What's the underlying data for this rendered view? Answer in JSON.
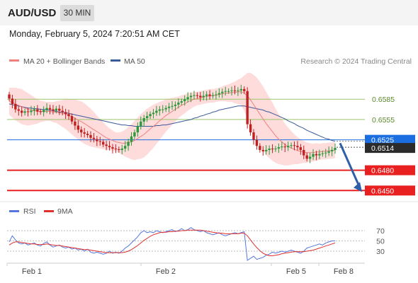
{
  "header": {
    "symbol": "AUD/USD",
    "timeframe": "30 MIN",
    "datetime": "Monday, February 5, 2024 7:20:51 AM CET"
  },
  "legend": {
    "bollinger_label": "MA 20 + Bollinger Bands",
    "ma50_label": "MA 50",
    "copyright": "Research © 2024 Trading Central",
    "rsi_label": "RSI",
    "rsi_ma_label": "9MA"
  },
  "colors": {
    "bollinger": "#f08080",
    "band_fill": "#ffd6d6",
    "ma50": "#3a5a9a",
    "rsi": "#5577dd",
    "rsi_ma": "#e03030",
    "resistance": "#9cc46b",
    "support": "#e82020",
    "current": "#1a6ee0",
    "last_price": "#2b2b2b",
    "arrow": "#2f5fa8"
  },
  "chart_data": {
    "type": "candlestick",
    "price_range": [
      0.6443,
      0.6625
    ],
    "x_labels": [
      "Feb 1",
      "Feb 2",
      "Feb 5",
      "Feb 8"
    ],
    "levels": [
      {
        "value": 0.6585,
        "label": "0.6585",
        "kind": "resistance"
      },
      {
        "value": 0.6555,
        "label": "0.6555",
        "kind": "resistance"
      },
      {
        "value": 0.6525,
        "label": "0.6525",
        "kind": "current"
      },
      {
        "value": 0.6514,
        "label": "0.6514",
        "kind": "last"
      },
      {
        "value": 0.648,
        "label": "0.6480",
        "kind": "support"
      },
      {
        "value": 0.645,
        "label": "0.6450",
        "kind": "support"
      }
    ],
    "forecast_arrow": {
      "from": 0.652,
      "to": 0.645,
      "direction": "down"
    },
    "close_series": [
      0.6586,
      0.6578,
      0.657,
      0.6568,
      0.6565,
      0.6567,
      0.6566,
      0.6568,
      0.657,
      0.6567,
      0.6566,
      0.6569,
      0.6572,
      0.657,
      0.6568,
      0.6571,
      0.6568,
      0.6566,
      0.6563,
      0.656,
      0.6552,
      0.6546,
      0.654,
      0.6536,
      0.6534,
      0.6532,
      0.6528,
      0.6526,
      0.6523,
      0.6522,
      0.6518,
      0.6516,
      0.6514,
      0.6512,
      0.6511,
      0.651,
      0.6512,
      0.6516,
      0.6522,
      0.653,
      0.6536,
      0.6545,
      0.6552,
      0.6557,
      0.656,
      0.6563,
      0.6565,
      0.6568,
      0.657,
      0.657,
      0.6572,
      0.6574,
      0.6575,
      0.6577,
      0.658,
      0.6582,
      0.6585,
      0.6588,
      0.659,
      0.6591,
      0.659,
      0.6588,
      0.659,
      0.6592,
      0.659,
      0.6591,
      0.6592,
      0.6594,
      0.6596,
      0.6597,
      0.6597,
      0.6598,
      0.6597,
      0.6598,
      0.66,
      0.6597,
      0.6548,
      0.6536,
      0.6525,
      0.6516,
      0.651,
      0.6508,
      0.651,
      0.6512,
      0.6511,
      0.6512,
      0.6514,
      0.6515,
      0.6514,
      0.6516,
      0.6517,
      0.6516,
      0.6514,
      0.651,
      0.6502,
      0.6497,
      0.65,
      0.6504,
      0.6502,
      0.6504,
      0.6505,
      0.6506,
      0.6508,
      0.651,
      0.6513
    ],
    "ma20_series": [
      0.6582,
      0.658,
      0.6578,
      0.6576,
      0.6574,
      0.6572,
      0.657,
      0.6569,
      0.6568,
      0.6567,
      0.6567,
      0.6567,
      0.6567,
      0.6567,
      0.6566,
      0.6566,
      0.6565,
      0.6564,
      0.6563,
      0.6561,
      0.6559,
      0.6557,
      0.6554,
      0.6552,
      0.6549,
      0.6546,
      0.6543,
      0.654,
      0.6537,
      0.6534,
      0.6531,
      0.6528,
      0.6526,
      0.6524,
      0.6522,
      0.6521,
      0.652,
      0.652,
      0.6521,
      0.6522,
      0.6524,
      0.6527,
      0.653,
      0.6533,
      0.6537,
      0.6541,
      0.6545,
      0.6549,
      0.6553,
      0.6557,
      0.6561,
      0.6564,
      0.6567,
      0.657,
      0.6573,
      0.6576,
      0.6578,
      0.6581,
      0.6583,
      0.6585,
      0.6586,
      0.6587,
      0.6588,
      0.6589,
      0.659,
      0.659,
      0.6591,
      0.6592,
      0.6593,
      0.6594,
      0.6594,
      0.6595,
      0.6595,
      0.6596,
      0.6596,
      0.6594,
      0.659,
      0.6584,
      0.6577,
      0.657,
      0.6563,
      0.6556,
      0.6549,
      0.6543,
      0.6537,
      0.6531,
      0.6526,
      0.6522,
      0.6518,
      0.6515,
      0.6513,
      0.6511,
      0.6509,
      0.6508,
      0.6507,
      0.6506,
      0.6506,
      0.6506,
      0.6507,
      0.6507,
      0.6508,
      0.6508,
      0.6509,
      0.6509,
      0.651
    ],
    "band_width_series": [
      0.002,
      0.0022,
      0.0024,
      0.0025,
      0.0026,
      0.0025,
      0.0024,
      0.0022,
      0.002,
      0.0018,
      0.0016,
      0.0015,
      0.0014,
      0.0014,
      0.0015,
      0.0016,
      0.0018,
      0.002,
      0.0022,
      0.0024,
      0.0026,
      0.0028,
      0.0029,
      0.003,
      0.003,
      0.0029,
      0.0028,
      0.0026,
      0.0024,
      0.0022,
      0.002,
      0.0018,
      0.0016,
      0.0015,
      0.0014,
      0.0015,
      0.0017,
      0.002,
      0.0023,
      0.0026,
      0.0029,
      0.0031,
      0.0033,
      0.0034,
      0.0034,
      0.0033,
      0.0032,
      0.003,
      0.0028,
      0.0026,
      0.0024,
      0.0022,
      0.002,
      0.0018,
      0.0016,
      0.0015,
      0.0014,
      0.0013,
      0.0012,
      0.0011,
      0.001,
      0.001,
      0.001,
      0.001,
      0.001,
      0.001,
      0.001,
      0.001,
      0.0011,
      0.0012,
      0.0013,
      0.0014,
      0.0016,
      0.0018,
      0.002,
      0.0026,
      0.0034,
      0.004,
      0.0044,
      0.0047,
      0.0048,
      0.0048,
      0.0047,
      0.0045,
      0.0043,
      0.004,
      0.0037,
      0.0034,
      0.0031,
      0.0028,
      0.0025,
      0.0022,
      0.002,
      0.0018,
      0.0016,
      0.0015,
      0.0014,
      0.0013,
      0.0013,
      0.0012,
      0.0012,
      0.0012,
      0.0012,
      0.0012,
      0.0012
    ],
    "ma50_series": [
      0.6578,
      0.6577,
      0.6576,
      0.6575,
      0.6574,
      0.6573,
      0.6572,
      0.6572,
      0.6571,
      0.6571,
      0.657,
      0.657,
      0.6569,
      0.6569,
      0.6568,
      0.6567,
      0.6566,
      0.6566,
      0.6565,
      0.6564,
      0.6563,
      0.6562,
      0.6561,
      0.656,
      0.6559,
      0.6558,
      0.6557,
      0.6556,
      0.6555,
      0.6554,
      0.6553,
      0.6552,
      0.6551,
      0.655,
      0.6549,
      0.6548,
      0.6547,
      0.6547,
      0.6546,
      0.6546,
      0.6545,
      0.6545,
      0.6545,
      0.6545,
      0.6545,
      0.6545,
      0.6545,
      0.6546,
      0.6546,
      0.6547,
      0.6547,
      0.6548,
      0.6549,
      0.655,
      0.6551,
      0.6552,
      0.6553,
      0.6554,
      0.6555,
      0.6557,
      0.6558,
      0.656,
      0.6561,
      0.6563,
      0.6564,
      0.6566,
      0.6567,
      0.6569,
      0.657,
      0.6571,
      0.6572,
      0.6573,
      0.6574,
      0.6575,
      0.6575,
      0.6575,
      0.6574,
      0.6573,
      0.6572,
      0.6571,
      0.657,
      0.6569,
      0.6567,
      0.6566,
      0.6564,
      0.6562,
      0.656,
      0.6558,
      0.6556,
      0.6553,
      0.6551,
      0.6549,
      0.6546,
      0.6544,
      0.6542,
      0.6539,
      0.6537,
      0.6535,
      0.6533,
      0.6531,
      0.6529,
      0.6527,
      0.6526,
      0.6524,
      0.6523
    ],
    "rsi": {
      "ticks": [
        30,
        50,
        70
      ],
      "range": [
        12,
        88
      ],
      "rsi_series": [
        48,
        60,
        52,
        46,
        44,
        46,
        42,
        44,
        46,
        42,
        40,
        45,
        48,
        42,
        38,
        40,
        42,
        38,
        36,
        38,
        34,
        36,
        32,
        34,
        30,
        34,
        28,
        26,
        28,
        26,
        24,
        26,
        30,
        26,
        28,
        26,
        30,
        36,
        40,
        46,
        52,
        58,
        66,
        70,
        66,
        68,
        66,
        70,
        68,
        66,
        68,
        70,
        72,
        68,
        70,
        74,
        70,
        72,
        76,
        72,
        70,
        68,
        70,
        66,
        64,
        62,
        64,
        66,
        62,
        60,
        62,
        64,
        66,
        64,
        66,
        68,
        12,
        16,
        20,
        14,
        16,
        18,
        22,
        24,
        28,
        26,
        28,
        30,
        28,
        30,
        32,
        30,
        28,
        26,
        30,
        36,
        38,
        40,
        42,
        44,
        42,
        46,
        48,
        50,
        50
      ],
      "ma_series": [
        42,
        46,
        48,
        48,
        47,
        46,
        45,
        44,
        44,
        43,
        43,
        43,
        44,
        43,
        42,
        41,
        41,
        40,
        39,
        38,
        37,
        36,
        35,
        34,
        33,
        33,
        32,
        31,
        30,
        29,
        28,
        27,
        27,
        27,
        27,
        27,
        27,
        28,
        30,
        33,
        37,
        41,
        46,
        51,
        55,
        59,
        62,
        64,
        66,
        67,
        67,
        68,
        68,
        69,
        69,
        70,
        70,
        71,
        71,
        71,
        71,
        71,
        70,
        69,
        68,
        67,
        66,
        65,
        65,
        64,
        64,
        64,
        64,
        64,
        65,
        65,
        60,
        52,
        44,
        37,
        31,
        26,
        23,
        21,
        21,
        22,
        23,
        25,
        26,
        27,
        28,
        29,
        29,
        29,
        29,
        30,
        31,
        32,
        34,
        36,
        38,
        40,
        42,
        44,
        46
      ]
    }
  }
}
